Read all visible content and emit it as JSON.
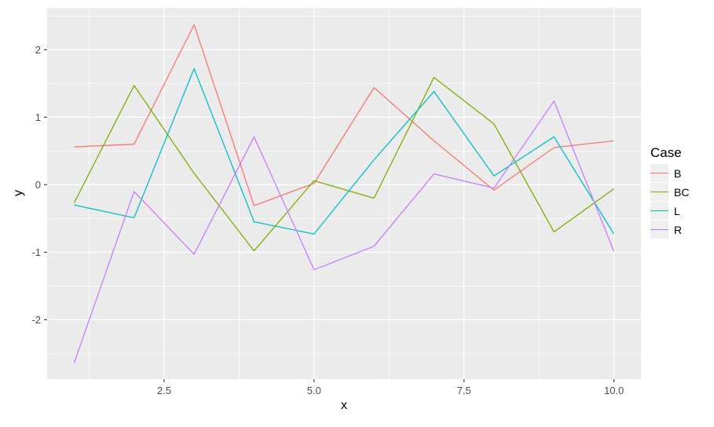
{
  "chart_data": {
    "type": "line",
    "title": "",
    "xlabel": "x",
    "ylabel": "y",
    "x": [
      1,
      2,
      3,
      4,
      5,
      6,
      7,
      8,
      9,
      10
    ],
    "series": [
      {
        "name": "B",
        "color": "#F8766D",
        "values": [
          0.56,
          0.6,
          2.37,
          -0.31,
          0.02,
          1.44,
          0.65,
          -0.08,
          0.55,
          0.65
        ]
      },
      {
        "name": "BC",
        "color": "#7CAE00",
        "values": [
          -0.27,
          1.47,
          0.17,
          -0.98,
          0.06,
          -0.2,
          1.59,
          0.9,
          -0.7,
          -0.06
        ]
      },
      {
        "name": "L",
        "color": "#00BFC4",
        "values": [
          -0.3,
          -0.49,
          1.72,
          -0.55,
          -0.73,
          0.37,
          1.38,
          0.13,
          0.71,
          -0.73
        ]
      },
      {
        "name": "R",
        "color": "#C77CFF",
        "values": [
          -2.64,
          -0.1,
          -1.03,
          0.71,
          -1.26,
          -0.91,
          0.16,
          -0.05,
          1.24,
          -0.99
        ]
      }
    ],
    "x_axis": {
      "range": [
        0.55,
        10.45
      ],
      "ticks": [
        2.5,
        5.0,
        7.5,
        10.0
      ],
      "tick_labels": [
        "2.5",
        "5.0",
        "7.5",
        "10.0"
      ],
      "minor_ticks": [
        1.25,
        3.75,
        6.25,
        8.75
      ]
    },
    "y_axis": {
      "range": [
        -2.88,
        2.62
      ],
      "ticks": [
        -2,
        -1,
        0,
        1,
        2
      ],
      "tick_labels": [
        "-2",
        "-1",
        "0",
        "1",
        "2"
      ],
      "minor_ticks": [
        -2.5,
        -1.5,
        -0.5,
        0.5,
        1.5,
        2.5
      ]
    },
    "legend": {
      "title": "Case",
      "position": "right",
      "entries": [
        {
          "label": "B",
          "color": "#F8766D"
        },
        {
          "label": "BC",
          "color": "#7CAE00"
        },
        {
          "label": "L",
          "color": "#00BFC4"
        },
        {
          "label": "R",
          "color": "#C77CFF"
        }
      ]
    },
    "style": {
      "panel_background": "#EBEBEB",
      "grid_color": "#FFFFFF",
      "tick_text_color": "#4d4d4d",
      "tick_mark_color": "#333333",
      "legend_key_background": "#EFEFEF"
    },
    "grid": true
  }
}
